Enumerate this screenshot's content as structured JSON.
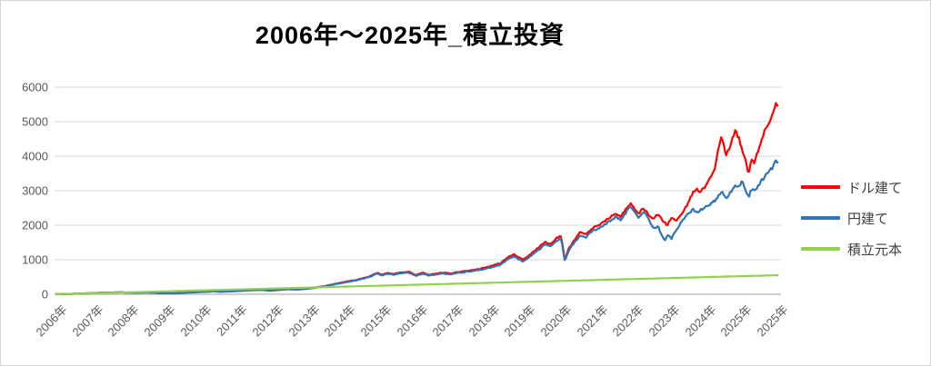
{
  "title": "2006年～2025年_積立投資",
  "colors": {
    "usd_line": "#ff0000",
    "jpy_line": "#2e75b6",
    "principal_line": "#92d050",
    "gridline": "#d9d9d9",
    "axis_line": "#bfbfbf",
    "tick_text": "#595959",
    "title_text": "#000000"
  },
  "chart_data": {
    "type": "line",
    "title": "2006年～2025年_積立投資",
    "xlabel": "",
    "ylabel": "",
    "grid": "horizontal",
    "legend_position": "right",
    "y_axis": {
      "min": 0,
      "max": 6000,
      "tick_interval": 1000,
      "ticks": [
        0,
        1000,
        2000,
        3000,
        4000,
        5000,
        6000
      ]
    },
    "x_axis": {
      "start": 2006.0,
      "end": 2025.58,
      "tick_labels": [
        "2006年",
        "2007年",
        "2008年",
        "2009年",
        "2010年",
        "2011年",
        "2012年",
        "2013年",
        "2014年",
        "2015年",
        "2016年",
        "2017年",
        "2018年",
        "2019年",
        "2020年",
        "2021年",
        "2022年",
        "2023年",
        "2024年",
        "2025年",
        "2025年"
      ]
    },
    "series": [
      {
        "name": "ドル建て",
        "color": "#ff0000",
        "noisy": true,
        "anchor_points": [
          [
            2006.0,
            2
          ],
          [
            2006.3,
            8
          ],
          [
            2006.6,
            18
          ],
          [
            2007.0,
            32
          ],
          [
            2007.4,
            48
          ],
          [
            2007.75,
            58
          ],
          [
            2008.0,
            50
          ],
          [
            2008.2,
            44
          ],
          [
            2008.45,
            54
          ],
          [
            2008.65,
            48
          ],
          [
            2008.8,
            32
          ],
          [
            2009.0,
            38
          ],
          [
            2009.15,
            28
          ],
          [
            2009.35,
            36
          ],
          [
            2009.6,
            52
          ],
          [
            2009.9,
            68
          ],
          [
            2010.25,
            86
          ],
          [
            2010.5,
            76
          ],
          [
            2010.75,
            88
          ],
          [
            2011.0,
            102
          ],
          [
            2011.3,
            122
          ],
          [
            2011.6,
            130
          ],
          [
            2011.8,
            106
          ],
          [
            2012.0,
            126
          ],
          [
            2012.3,
            150
          ],
          [
            2012.5,
            140
          ],
          [
            2012.75,
            158
          ],
          [
            2013.0,
            190
          ],
          [
            2013.3,
            240
          ],
          [
            2013.6,
            310
          ],
          [
            2013.9,
            370
          ],
          [
            2014.15,
            420
          ],
          [
            2014.45,
            500
          ],
          [
            2014.7,
            615
          ],
          [
            2014.85,
            570
          ],
          [
            2015.0,
            620
          ],
          [
            2015.15,
            585
          ],
          [
            2015.35,
            635
          ],
          [
            2015.55,
            655
          ],
          [
            2015.75,
            555
          ],
          [
            2015.95,
            625
          ],
          [
            2016.1,
            560
          ],
          [
            2016.3,
            600
          ],
          [
            2016.5,
            625
          ],
          [
            2016.7,
            600
          ],
          [
            2016.9,
            645
          ],
          [
            2017.2,
            690
          ],
          [
            2017.5,
            740
          ],
          [
            2017.8,
            820
          ],
          [
            2018.05,
            900
          ],
          [
            2018.25,
            1080
          ],
          [
            2018.4,
            1160
          ],
          [
            2018.55,
            1060
          ],
          [
            2018.65,
            1000
          ],
          [
            2018.85,
            1160
          ],
          [
            2019.05,
            1330
          ],
          [
            2019.25,
            1520
          ],
          [
            2019.4,
            1440
          ],
          [
            2019.55,
            1620
          ],
          [
            2019.68,
            1700
          ],
          [
            2019.78,
            1010
          ],
          [
            2019.9,
            1350
          ],
          [
            2020.05,
            1580
          ],
          [
            2020.2,
            1800
          ],
          [
            2020.35,
            1720
          ],
          [
            2020.5,
            1900
          ],
          [
            2020.65,
            1980
          ],
          [
            2020.8,
            2060
          ],
          [
            2021.0,
            2230
          ],
          [
            2021.15,
            2340
          ],
          [
            2021.3,
            2260
          ],
          [
            2021.45,
            2500
          ],
          [
            2021.55,
            2630
          ],
          [
            2021.65,
            2500
          ],
          [
            2021.78,
            2340
          ],
          [
            2021.9,
            2490
          ],
          [
            2022.0,
            2380
          ],
          [
            2022.15,
            2170
          ],
          [
            2022.3,
            2320
          ],
          [
            2022.45,
            2110
          ],
          [
            2022.55,
            2000
          ],
          [
            2022.68,
            2220
          ],
          [
            2022.8,
            2120
          ],
          [
            2022.95,
            2320
          ],
          [
            2023.1,
            2600
          ],
          [
            2023.25,
            2960
          ],
          [
            2023.35,
            3060
          ],
          [
            2023.45,
            2960
          ],
          [
            2023.6,
            3150
          ],
          [
            2023.75,
            3480
          ],
          [
            2023.85,
            3700
          ],
          [
            2023.95,
            4280
          ],
          [
            2024.02,
            4600
          ],
          [
            2024.1,
            4250
          ],
          [
            2024.15,
            4050
          ],
          [
            2024.25,
            4280
          ],
          [
            2024.38,
            4730
          ],
          [
            2024.48,
            4560
          ],
          [
            2024.58,
            4150
          ],
          [
            2024.68,
            3850
          ],
          [
            2024.75,
            3490
          ],
          [
            2024.83,
            3950
          ],
          [
            2024.9,
            3800
          ],
          [
            2025.0,
            4120
          ],
          [
            2025.1,
            4420
          ],
          [
            2025.2,
            4750
          ],
          [
            2025.3,
            4980
          ],
          [
            2025.4,
            5200
          ],
          [
            2025.5,
            5520
          ],
          [
            2025.58,
            5440
          ]
        ]
      },
      {
        "name": "円建て",
        "color": "#2e75b6",
        "noisy": true,
        "anchor_points": [
          [
            2006.0,
            2
          ],
          [
            2006.3,
            7
          ],
          [
            2006.6,
            17
          ],
          [
            2007.0,
            30
          ],
          [
            2007.4,
            46
          ],
          [
            2007.75,
            55
          ],
          [
            2008.0,
            47
          ],
          [
            2008.2,
            41
          ],
          [
            2008.45,
            51
          ],
          [
            2008.65,
            45
          ],
          [
            2008.8,
            29
          ],
          [
            2009.0,
            35
          ],
          [
            2009.15,
            26
          ],
          [
            2009.35,
            33
          ],
          [
            2009.6,
            48
          ],
          [
            2009.9,
            64
          ],
          [
            2010.25,
            82
          ],
          [
            2010.5,
            72
          ],
          [
            2010.75,
            84
          ],
          [
            2011.0,
            97
          ],
          [
            2011.3,
            117
          ],
          [
            2011.6,
            125
          ],
          [
            2011.8,
            101
          ],
          [
            2012.0,
            121
          ],
          [
            2012.3,
            145
          ],
          [
            2012.5,
            135
          ],
          [
            2012.75,
            152
          ],
          [
            2013.0,
            183
          ],
          [
            2013.3,
            232
          ],
          [
            2013.6,
            300
          ],
          [
            2013.9,
            358
          ],
          [
            2014.15,
            408
          ],
          [
            2014.45,
            485
          ],
          [
            2014.7,
            595
          ],
          [
            2014.85,
            550
          ],
          [
            2015.0,
            600
          ],
          [
            2015.15,
            565
          ],
          [
            2015.35,
            612
          ],
          [
            2015.55,
            630
          ],
          [
            2015.75,
            535
          ],
          [
            2015.95,
            600
          ],
          [
            2016.1,
            540
          ],
          [
            2016.3,
            578
          ],
          [
            2016.5,
            600
          ],
          [
            2016.7,
            578
          ],
          [
            2016.9,
            620
          ],
          [
            2017.2,
            660
          ],
          [
            2017.5,
            705
          ],
          [
            2017.8,
            780
          ],
          [
            2018.05,
            860
          ],
          [
            2018.25,
            1030
          ],
          [
            2018.4,
            1105
          ],
          [
            2018.55,
            1010
          ],
          [
            2018.65,
            950
          ],
          [
            2018.85,
            1105
          ],
          [
            2019.05,
            1270
          ],
          [
            2019.25,
            1450
          ],
          [
            2019.4,
            1375
          ],
          [
            2019.55,
            1545
          ],
          [
            2019.68,
            1625
          ],
          [
            2019.78,
            960
          ],
          [
            2019.9,
            1290
          ],
          [
            2020.05,
            1510
          ],
          [
            2020.2,
            1720
          ],
          [
            2020.35,
            1645
          ],
          [
            2020.5,
            1815
          ],
          [
            2020.65,
            1890
          ],
          [
            2020.8,
            1965
          ],
          [
            2021.0,
            2130
          ],
          [
            2021.15,
            2235
          ],
          [
            2021.3,
            2160
          ],
          [
            2021.45,
            2390
          ],
          [
            2021.55,
            2560
          ],
          [
            2021.65,
            2390
          ],
          [
            2021.78,
            2230
          ],
          [
            2021.9,
            2380
          ],
          [
            2022.0,
            2270
          ],
          [
            2022.1,
            2060
          ],
          [
            2022.2,
            1880
          ],
          [
            2022.3,
            1990
          ],
          [
            2022.4,
            1700
          ],
          [
            2022.48,
            1560
          ],
          [
            2022.58,
            1740
          ],
          [
            2022.66,
            1600
          ],
          [
            2022.75,
            1780
          ],
          [
            2022.85,
            1950
          ],
          [
            2022.95,
            2120
          ],
          [
            2023.1,
            2330
          ],
          [
            2023.25,
            2450
          ],
          [
            2023.35,
            2370
          ],
          [
            2023.45,
            2440
          ],
          [
            2023.6,
            2530
          ],
          [
            2023.75,
            2640
          ],
          [
            2023.85,
            2720
          ],
          [
            2023.95,
            2880
          ],
          [
            2024.02,
            2970
          ],
          [
            2024.1,
            2850
          ],
          [
            2024.15,
            2790
          ],
          [
            2024.25,
            2930
          ],
          [
            2024.38,
            3150
          ],
          [
            2024.48,
            3120
          ],
          [
            2024.58,
            3280
          ],
          [
            2024.68,
            3000
          ],
          [
            2024.75,
            2800
          ],
          [
            2024.83,
            3050
          ],
          [
            2024.9,
            2980
          ],
          [
            2025.0,
            3120
          ],
          [
            2025.1,
            3280
          ],
          [
            2025.2,
            3420
          ],
          [
            2025.3,
            3550
          ],
          [
            2025.4,
            3680
          ],
          [
            2025.5,
            3860
          ],
          [
            2025.58,
            3790
          ]
        ]
      },
      {
        "name": "積立元本",
        "color": "#92d050",
        "noisy": false,
        "anchor_points": [
          [
            2006.0,
            0
          ],
          [
            2008.0,
            56
          ],
          [
            2010.0,
            113
          ],
          [
            2012.0,
            169
          ],
          [
            2014.0,
            226
          ],
          [
            2016.0,
            282
          ],
          [
            2018.0,
            338
          ],
          [
            2020.0,
            395
          ],
          [
            2022.0,
            451
          ],
          [
            2024.0,
            508
          ],
          [
            2025.58,
            552
          ]
        ]
      }
    ]
  }
}
